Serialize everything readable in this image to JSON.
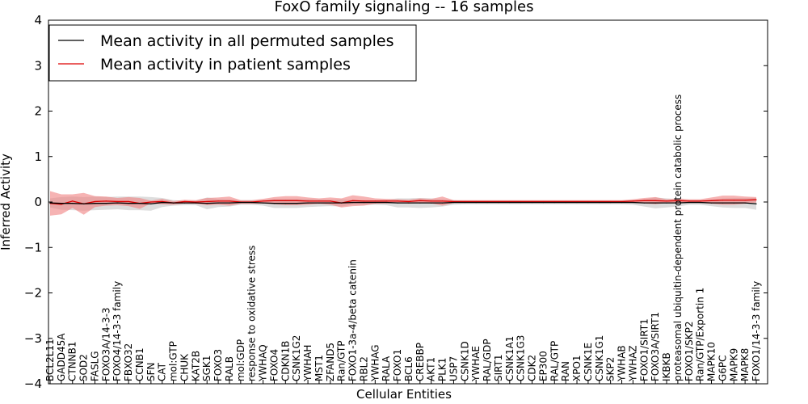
{
  "chart_data": {
    "type": "line",
    "title": "FoxO family signaling -- 16 samples",
    "xlabel": "Cellular Entities",
    "ylabel": "Inferred Activity",
    "ylim": [
      -4,
      4
    ],
    "yticks": [
      -4,
      -3,
      -2,
      -1,
      0,
      1,
      2,
      3,
      4
    ],
    "ytick_labels": [
      "−4",
      "−3",
      "−2",
      "−1",
      "0",
      "1",
      "2",
      "3",
      "4"
    ],
    "legend_position": "top-left",
    "categories": [
      "BCL2L11",
      "GADD45A",
      "CTNNB1",
      "SOD2",
      "FASLG",
      "FOXO3A/14-3-3",
      "FOXO4/14-3-3 family",
      "FBXO32",
      "CCNB1",
      "SFN",
      "CAT",
      "mol:GTP",
      "CHUK",
      "KAT2B",
      "SGK1",
      "FOXO3",
      "RALB",
      "mol:GDP",
      "response to oxidative stress",
      "YWHAQ",
      "FOXO4",
      "CDKN1B",
      "CSNK1G2",
      "YWHAH",
      "MST1",
      "ZFAND5",
      "Ran/GTP",
      "FOXO1-3a-4/beta catenin",
      "RBL2",
      "YWHAG",
      "RALA",
      "FOXO1",
      "BCL6",
      "CREBBP",
      "AKT1",
      "PLK1",
      "USP7",
      "CSNK1D",
      "YWHAE",
      "RAL/GDP",
      "SIRT1",
      "CSNK1A1",
      "CSNK1G3",
      "CDK2",
      "EP300",
      "RAL/GTP",
      "RAN",
      "XPO1",
      "CSNK1E",
      "CSNK1G1",
      "SKP2",
      "YWHAB",
      "YWHAZ",
      "FOXO1/SIRT1",
      "FOXO3A/SIRT1",
      "IKBKB",
      "proteasomal ubiquitin-dependent protein catabolic process",
      "FOXO1/SKP2",
      "Ran/GTP/Exportin 1",
      "MAPK10",
      "G6PC",
      "MAPK9",
      "MAPK8",
      "FOXO1/14-3-3 family"
    ],
    "series": [
      {
        "name": "Mean activity in all permuted samples",
        "color": "#000000",
        "band_color": "#bbbbbb",
        "values": [
          -0.02,
          -0.03,
          -0.03,
          -0.04,
          -0.03,
          -0.03,
          -0.02,
          -0.03,
          -0.03,
          -0.04,
          -0.01,
          -0.02,
          -0.02,
          -0.02,
          -0.03,
          -0.02,
          -0.02,
          -0.01,
          -0.01,
          -0.02,
          -0.03,
          -0.03,
          -0.03,
          -0.02,
          -0.02,
          -0.02,
          -0.02,
          -0.01,
          -0.01,
          -0.01,
          -0.01,
          -0.02,
          -0.02,
          -0.02,
          -0.02,
          -0.02,
          -0.01,
          -0.01,
          -0.01,
          -0.01,
          -0.01,
          -0.01,
          -0.01,
          -0.01,
          -0.01,
          -0.01,
          -0.01,
          -0.01,
          -0.01,
          -0.01,
          -0.01,
          -0.01,
          -0.01,
          -0.02,
          -0.02,
          -0.02,
          -0.02,
          -0.01,
          -0.01,
          -0.02,
          -0.02,
          -0.02,
          -0.02,
          -0.04
        ],
        "err": [
          0.1,
          0.14,
          0.15,
          0.15,
          0.15,
          0.14,
          0.14,
          0.15,
          0.15,
          0.15,
          0.1,
          0.06,
          0.05,
          0.05,
          0.13,
          0.09,
          0.08,
          0.05,
          0.05,
          0.06,
          0.1,
          0.1,
          0.1,
          0.09,
          0.08,
          0.07,
          0.08,
          0.05,
          0.05,
          0.05,
          0.06,
          0.1,
          0.1,
          0.11,
          0.1,
          0.08,
          0.05,
          0.04,
          0.04,
          0.04,
          0.04,
          0.04,
          0.04,
          0.04,
          0.04,
          0.04,
          0.04,
          0.04,
          0.04,
          0.04,
          0.04,
          0.04,
          0.05,
          0.08,
          0.12,
          0.1,
          0.08,
          0.05,
          0.05,
          0.07,
          0.1,
          0.11,
          0.11,
          0.13
        ]
      },
      {
        "name": "Mean activity in patient samples",
        "color": "#dd0000",
        "band_color": "#f08080",
        "values": [
          -0.03,
          -0.05,
          0.02,
          -0.04,
          0.01,
          0.02,
          0.01,
          0.01,
          -0.03,
          0.0,
          0.01,
          -0.02,
          0.01,
          0.0,
          0.01,
          0.02,
          0.02,
          0.0,
          0.0,
          0.02,
          0.03,
          0.03,
          0.03,
          0.02,
          0.02,
          0.02,
          -0.02,
          0.03,
          0.02,
          0.02,
          0.02,
          0.02,
          0.01,
          0.03,
          0.02,
          0.02,
          0.01,
          0.01,
          0.01,
          0.01,
          0.01,
          0.01,
          0.01,
          0.01,
          0.01,
          0.01,
          0.01,
          0.01,
          0.01,
          0.01,
          0.01,
          0.01,
          0.02,
          0.03,
          0.03,
          0.02,
          0.03,
          0.02,
          0.02,
          0.03,
          0.04,
          0.04,
          0.04,
          0.05
        ],
        "err": [
          0.27,
          0.22,
          0.15,
          0.24,
          0.12,
          0.1,
          0.08,
          0.1,
          0.12,
          0.03,
          0.06,
          0.04,
          0.04,
          0.04,
          0.08,
          0.08,
          0.1,
          0.04,
          0.04,
          0.05,
          0.08,
          0.1,
          0.1,
          0.08,
          0.06,
          0.08,
          0.1,
          0.12,
          0.1,
          0.06,
          0.05,
          0.04,
          0.04,
          0.05,
          0.05,
          0.1,
          0.03,
          0.03,
          0.03,
          0.03,
          0.03,
          0.03,
          0.03,
          0.03,
          0.03,
          0.03,
          0.03,
          0.03,
          0.03,
          0.03,
          0.03,
          0.03,
          0.04,
          0.06,
          0.08,
          0.04,
          0.05,
          0.04,
          0.04,
          0.07,
          0.1,
          0.1,
          0.08,
          0.06
        ]
      }
    ]
  }
}
